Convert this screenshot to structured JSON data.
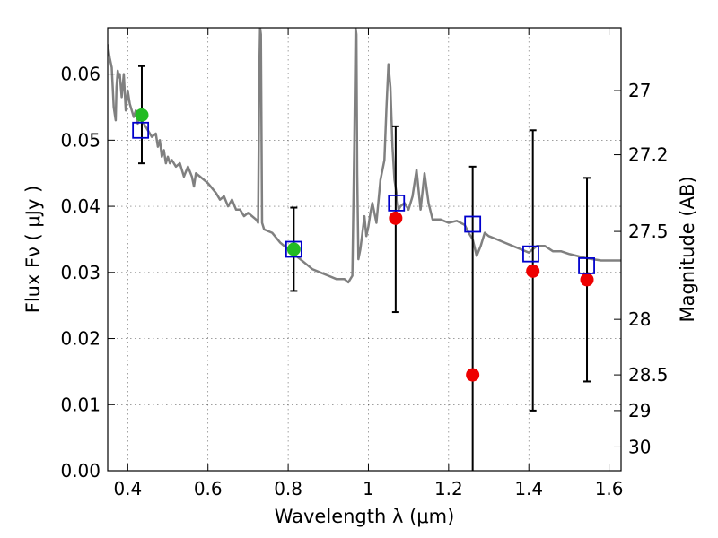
{
  "chart_data": {
    "type": "scatter",
    "xlabel": "Wavelength  λ (μm)",
    "ylabel": "Flux  Fν  ( μJy )",
    "y2label": "Magnitude (AB)",
    "xlim": [
      0.35,
      1.63
    ],
    "ylim": [
      0.0,
      0.067
    ],
    "grid": true,
    "x_ticks": [
      0.4,
      0.6,
      0.8,
      1.0,
      1.2,
      1.4,
      1.6
    ],
    "x_tick_labels": [
      "0.4",
      "0.6",
      "0.8",
      "1",
      "1.2",
      "1.4",
      "1.6"
    ],
    "y_ticks": [
      0.0,
      0.01,
      0.02,
      0.03,
      0.04,
      0.05,
      0.06
    ],
    "y_tick_labels": [
      "0.00",
      "0.01",
      "0.02",
      "0.03",
      "0.04",
      "0.05",
      "0.06"
    ],
    "y2_ticks": [
      {
        "label": "27",
        "flux": 0.0575
      },
      {
        "label": "27.2",
        "flux": 0.0478
      },
      {
        "label": "27.5",
        "flux": 0.0362
      },
      {
        "label": "28",
        "flux": 0.0229
      },
      {
        "label": "28.5",
        "flux": 0.0145
      },
      {
        "label": "29",
        "flux": 0.0091
      },
      {
        "label": "30",
        "flux": 0.0036
      }
    ],
    "colors": {
      "model": "#808080",
      "green_points": "#22bb22",
      "red_points": "#ee0000",
      "model_squares": "#0000cc",
      "error_bars": "#000000"
    },
    "model_spectrum": {
      "x": [
        0.35,
        0.355,
        0.36,
        0.365,
        0.37,
        0.372,
        0.375,
        0.378,
        0.38,
        0.385,
        0.39,
        0.395,
        0.4,
        0.405,
        0.41,
        0.415,
        0.42,
        0.425,
        0.43,
        0.435,
        0.44,
        0.445,
        0.45,
        0.46,
        0.47,
        0.475,
        0.48,
        0.485,
        0.49,
        0.495,
        0.5,
        0.505,
        0.51,
        0.52,
        0.53,
        0.54,
        0.55,
        0.56,
        0.565,
        0.57,
        0.58,
        0.6,
        0.62,
        0.63,
        0.64,
        0.65,
        0.66,
        0.67,
        0.68,
        0.69,
        0.7,
        0.71,
        0.72,
        0.725,
        0.728,
        0.73,
        0.732,
        0.735,
        0.74,
        0.76,
        0.78,
        0.8,
        0.82,
        0.84,
        0.86,
        0.88,
        0.9,
        0.92,
        0.94,
        0.95,
        0.96,
        0.965,
        0.968,
        0.97,
        0.972,
        0.975,
        0.98,
        0.985,
        0.99,
        0.995,
        1.0,
        1.005,
        1.01,
        1.02,
        1.03,
        1.04,
        1.045,
        1.05,
        1.055,
        1.06,
        1.065,
        1.07,
        1.075,
        1.08,
        1.09,
        1.1,
        1.11,
        1.12,
        1.13,
        1.14,
        1.15,
        1.16,
        1.18,
        1.2,
        1.22,
        1.24,
        1.25,
        1.26,
        1.27,
        1.28,
        1.29,
        1.3,
        1.32,
        1.34,
        1.36,
        1.38,
        1.4,
        1.42,
        1.44,
        1.46,
        1.48,
        1.5,
        1.52,
        1.54,
        1.56,
        1.58,
        1.6,
        1.63
      ],
      "y": [
        0.0645,
        0.0625,
        0.061,
        0.055,
        0.053,
        0.058,
        0.0605,
        0.0595,
        0.06,
        0.0565,
        0.06,
        0.0545,
        0.0575,
        0.0555,
        0.0545,
        0.0535,
        0.0545,
        0.0525,
        0.054,
        0.0535,
        0.0525,
        0.052,
        0.0515,
        0.0505,
        0.051,
        0.049,
        0.05,
        0.0475,
        0.0485,
        0.0465,
        0.0475,
        0.0465,
        0.047,
        0.046,
        0.0465,
        0.0445,
        0.046,
        0.0445,
        0.043,
        0.045,
        0.0445,
        0.0435,
        0.042,
        0.041,
        0.0415,
        0.04,
        0.041,
        0.0395,
        0.0395,
        0.0385,
        0.039,
        0.0385,
        0.038,
        0.0375,
        0.06,
        0.067,
        0.066,
        0.0375,
        0.0365,
        0.036,
        0.0345,
        0.0335,
        0.0325,
        0.0315,
        0.0305,
        0.03,
        0.0295,
        0.029,
        0.029,
        0.0285,
        0.0295,
        0.05,
        0.067,
        0.066,
        0.045,
        0.032,
        0.0335,
        0.036,
        0.0385,
        0.0355,
        0.037,
        0.039,
        0.0405,
        0.0375,
        0.044,
        0.047,
        0.055,
        0.0615,
        0.058,
        0.049,
        0.044,
        0.042,
        0.0395,
        0.04,
        0.0405,
        0.0395,
        0.0415,
        0.0455,
        0.0395,
        0.045,
        0.0405,
        0.038,
        0.038,
        0.0375,
        0.0378,
        0.0372,
        0.036,
        0.035,
        0.0325,
        0.034,
        0.036,
        0.0355,
        0.035,
        0.0345,
        0.034,
        0.0335,
        0.033,
        0.034,
        0.034,
        0.0332,
        0.0332,
        0.0328,
        0.0325,
        0.0322,
        0.032,
        0.0318,
        0.0318,
        0.0318
      ]
    },
    "observed_points": [
      {
        "x": 0.435,
        "y": 0.0538,
        "err_low": 0.0465,
        "err_high": 0.0612,
        "color": "green"
      },
      {
        "x": 0.814,
        "y": 0.0335,
        "err_low": 0.0272,
        "err_high": 0.0398,
        "color": "green"
      },
      {
        "x": 1.068,
        "y": 0.0382,
        "err_low": 0.024,
        "err_high": 0.0521,
        "color": "red"
      },
      {
        "x": 1.26,
        "y": 0.0145,
        "err_low": 0.0,
        "err_high": 0.046,
        "color": "red"
      },
      {
        "x": 1.41,
        "y": 0.0302,
        "err_low": 0.0091,
        "err_high": 0.0515,
        "color": "red"
      },
      {
        "x": 1.545,
        "y": 0.0289,
        "err_low": 0.0135,
        "err_high": 0.0443,
        "color": "red"
      }
    ],
    "model_photometry": [
      {
        "x": 0.432,
        "y": 0.0515
      },
      {
        "x": 0.814,
        "y": 0.0335
      },
      {
        "x": 1.07,
        "y": 0.0405
      },
      {
        "x": 1.26,
        "y": 0.0373
      },
      {
        "x": 1.405,
        "y": 0.0328
      },
      {
        "x": 1.544,
        "y": 0.031
      }
    ]
  }
}
